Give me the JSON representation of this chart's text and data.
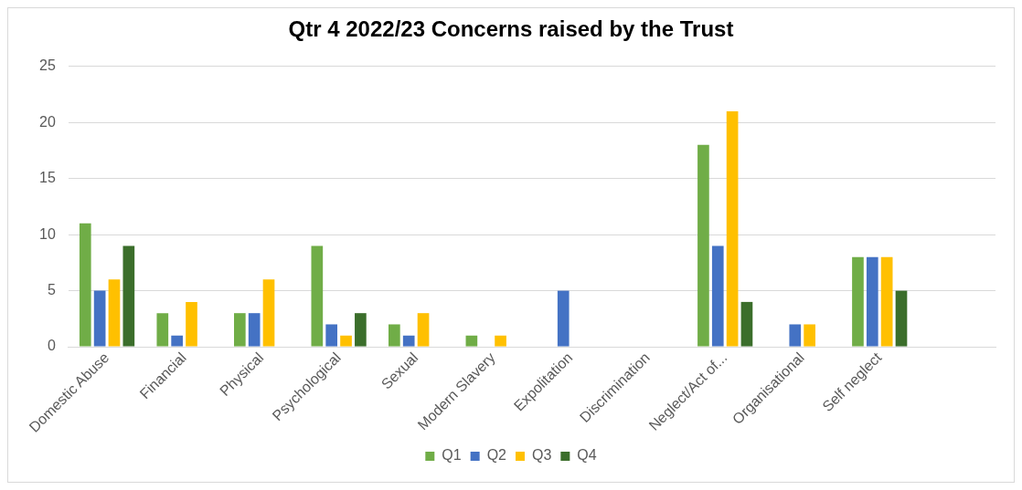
{
  "chart_data": {
    "type": "bar",
    "title": "Qtr 4 2022/23 Concerns raised by the Trust",
    "categories": [
      "Domestic Abuse",
      "Financial",
      "Physical",
      "Psychological",
      "Sexual",
      "Modern Slavery",
      "Expolitation",
      "Discrimination",
      "Neglect/Act of...",
      "Organisational",
      "Self neglect",
      null
    ],
    "series": [
      {
        "name": "Q1",
        "color": "#70ad47",
        "values": [
          11,
          3,
          3,
          9,
          2,
          1,
          0,
          0,
          18,
          0,
          8,
          null
        ]
      },
      {
        "name": "Q2",
        "color": "#4472c4",
        "values": [
          5,
          1,
          3,
          2,
          1,
          0,
          5,
          0,
          9,
          2,
          8,
          null
        ]
      },
      {
        "name": "Q3",
        "color": "#ffc000",
        "values": [
          6,
          4,
          6,
          1,
          3,
          1,
          0,
          0,
          21,
          2,
          8,
          null
        ]
      },
      {
        "name": "Q4",
        "color": "#3b6e2b",
        "values": [
          9,
          0,
          0,
          3,
          0,
          0,
          0,
          0,
          4,
          0,
          5,
          null
        ]
      }
    ],
    "ylim": [
      0,
      25
    ],
    "yticks": [
      0,
      5,
      10,
      15,
      20,
      25
    ],
    "grid": "y",
    "legend": "bottom"
  }
}
